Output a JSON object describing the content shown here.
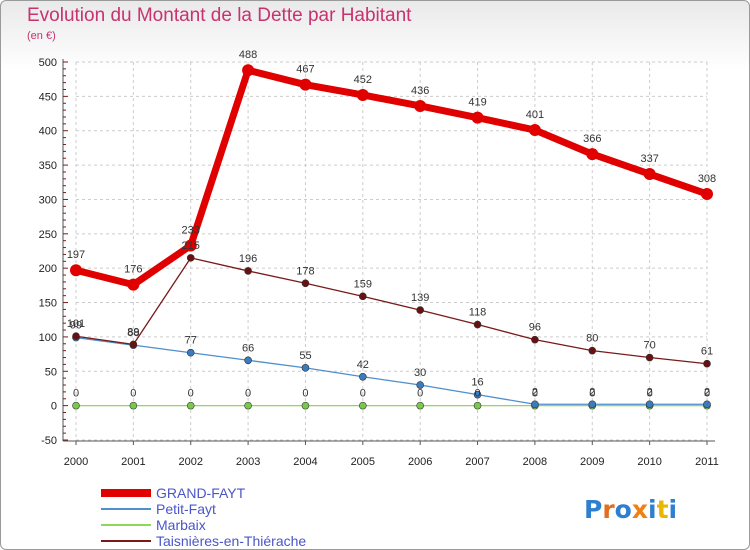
{
  "chart_data": {
    "type": "line",
    "title": "Evolution du Montant de la Dette par Habitant",
    "subtitle": "(en €)",
    "xlabel": "",
    "ylabel": "",
    "x": [
      "2000",
      "2001",
      "2002",
      "2003",
      "2004",
      "2005",
      "2006",
      "2007",
      "2008",
      "2009",
      "2010",
      "2011"
    ],
    "yticks": [
      "-50",
      "0",
      "50",
      "100",
      "150",
      "200",
      "250",
      "300",
      "350",
      "400",
      "450",
      "500"
    ],
    "ylim": [
      -50,
      500
    ],
    "grid": true,
    "legend_position": "bottom-left",
    "series": [
      {
        "name": "GRAND-FAYT",
        "color": "#e00000",
        "values": [
          197,
          176,
          233,
          488,
          467,
          452,
          436,
          419,
          401,
          366,
          337,
          308
        ],
        "labels": [
          "197",
          "176",
          "233",
          "488",
          "467",
          "452",
          "436",
          "419",
          "401",
          "366",
          "337",
          "308"
        ]
      },
      {
        "name": "Petit-Fayt",
        "color": "#4f8fcc",
        "values": [
          99,
          88,
          77,
          66,
          55,
          42,
          30,
          16,
          2,
          2,
          2,
          2
        ],
        "labels": [
          "99",
          "88",
          "77",
          "66",
          "55",
          "42",
          "30",
          "16",
          "2",
          "2",
          "2",
          "2"
        ]
      },
      {
        "name": "Marbaix",
        "color": "#8ed85a",
        "values": [
          0,
          0,
          0,
          0,
          0,
          0,
          0,
          0,
          0,
          0,
          0,
          0
        ],
        "labels": [
          "0",
          "0",
          "0",
          "0",
          "0",
          "0",
          "0",
          "0",
          "0",
          "0",
          "0",
          "0"
        ]
      },
      {
        "name": "Taisnières-en-Thiérache",
        "color": "#7a1a1a",
        "values": [
          101,
          89,
          215,
          196,
          178,
          159,
          139,
          118,
          96,
          80,
          70,
          61
        ],
        "labels": [
          "101",
          "89",
          "215",
          "196",
          "178",
          "159",
          "139",
          "118",
          "96",
          "80",
          "70",
          "61"
        ]
      }
    ]
  },
  "brand": {
    "logo_text": "Proxiti"
  }
}
